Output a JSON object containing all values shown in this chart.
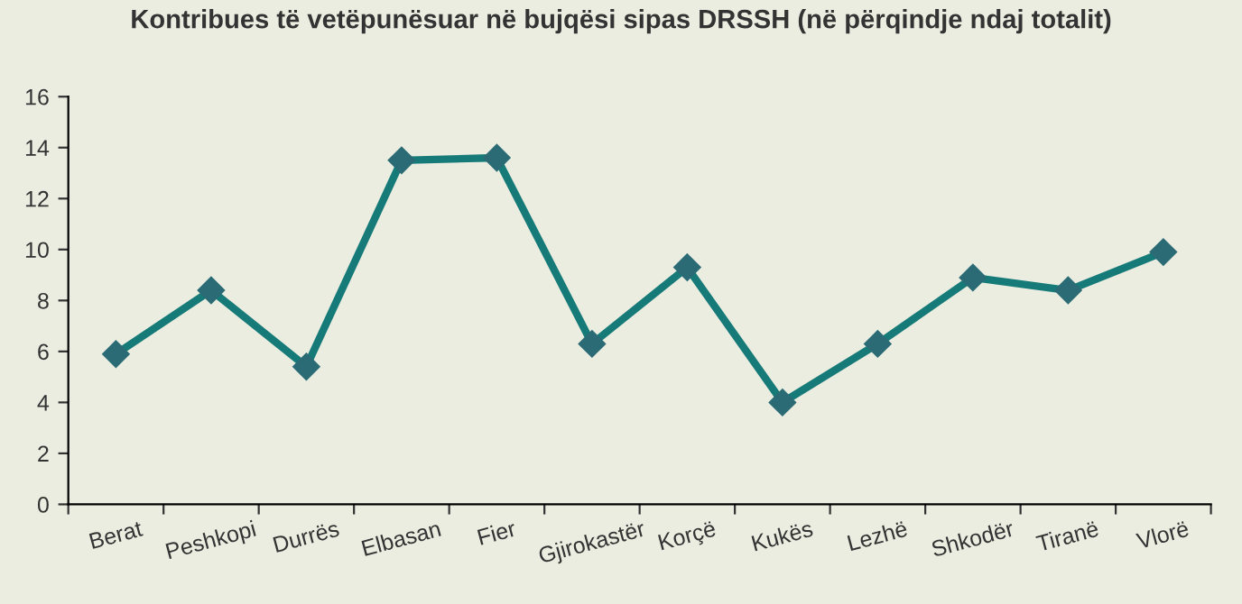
{
  "chart_data": {
    "type": "line",
    "title": "Kontribues të vetëpunësuar në bujqësi sipas DRSSH (në përqindje ndaj totalit)",
    "categories": [
      "Berat",
      "Peshkopi",
      "Durrës",
      "Elbasan",
      "Fier",
      "Gjirokastër",
      "Korçë",
      "Kukës",
      "Lezhë",
      "Shkodër",
      "Tiranë",
      "Vlorë"
    ],
    "series": [
      {
        "color": "#167a78",
        "values": [
          5.9,
          8.4,
          5.4,
          13.5,
          13.6,
          6.3,
          9.3,
          4.0,
          6.3,
          8.9,
          8.4,
          9.9
        ]
      }
    ],
    "ylim": [
      0,
      16
    ],
    "yticks": [
      0,
      2,
      4,
      6,
      8,
      10,
      12,
      14,
      16
    ],
    "grid": false,
    "legend": false,
    "marker": "diamond",
    "line_style": "solid"
  }
}
